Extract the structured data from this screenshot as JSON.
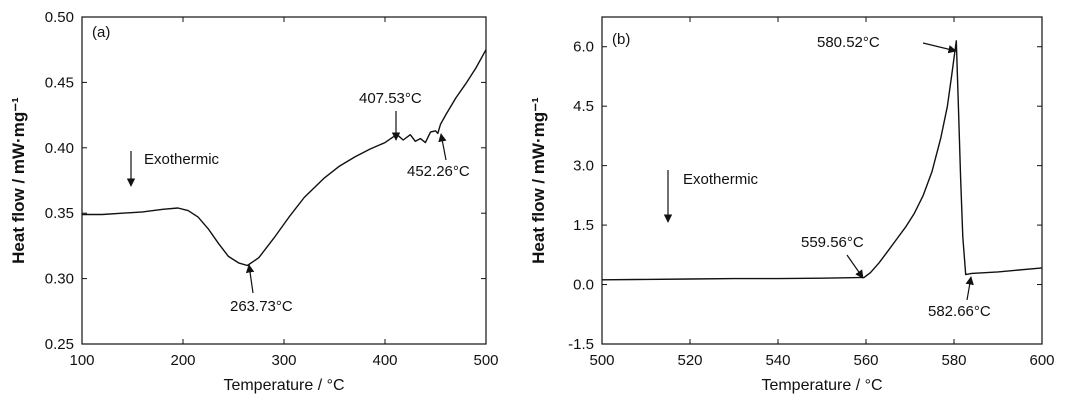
{
  "chart_data": [
    {
      "type": "line",
      "panel_label": "(a)",
      "xlabel": "Temperature / °C",
      "ylabel": "Heat flow / mW·mg⁻¹",
      "xlim": [
        100,
        500
      ],
      "ylim": [
        0.25,
        0.5
      ],
      "xticks": [
        "100",
        "200",
        "300",
        "400",
        "500"
      ],
      "yticks": [
        "0.25",
        "0.30",
        "0.35",
        "0.40",
        "0.45",
        "0.50"
      ],
      "grid": false,
      "series": [
        {
          "x": [
            100,
            120,
            140,
            160,
            180,
            195,
            205,
            215,
            225,
            235,
            245,
            255,
            263.73,
            275,
            290,
            305,
            320,
            340,
            355,
            370,
            385,
            400,
            407.53,
            412,
            418,
            425,
            430,
            435,
            440,
            445,
            450,
            452.26,
            455,
            460,
            470,
            480,
            490,
            500
          ],
          "y": [
            0.349,
            0.349,
            0.35,
            0.351,
            0.353,
            0.354,
            0.352,
            0.347,
            0.338,
            0.327,
            0.317,
            0.312,
            0.31,
            0.316,
            0.331,
            0.347,
            0.362,
            0.377,
            0.386,
            0.393,
            0.399,
            0.404,
            0.408,
            0.41,
            0.406,
            0.41,
            0.405,
            0.407,
            0.404,
            0.412,
            0.413,
            0.411,
            0.418,
            0.425,
            0.438,
            0.449,
            0.461,
            0.475
          ]
        }
      ],
      "annotations": [
        {
          "text": "Exothermic",
          "x": 148,
          "y": 0.365,
          "arrow": "down"
        },
        {
          "text": "263.73°C",
          "x": 263.73,
          "y": 0.31
        },
        {
          "text": "407.53°C",
          "x": 407.53,
          "y": 0.408
        },
        {
          "text": "452.26°C",
          "x": 452.26,
          "y": 0.411
        }
      ]
    },
    {
      "type": "line",
      "panel_label": "(b)",
      "xlabel": "Temperature / °C",
      "ylabel": "Heat flow / mW·mg⁻¹",
      "xlim": [
        500,
        600
      ],
      "ylim": [
        -1.5,
        6.75
      ],
      "xticks": [
        "500",
        "520",
        "540",
        "560",
        "580",
        "600"
      ],
      "yticks": [
        "-1.5",
        "0.0",
        "1.5",
        "3.0",
        "4.5",
        "6.0"
      ],
      "grid": false,
      "series": [
        {
          "x": [
            500,
            510,
            520,
            530,
            540,
            550,
            555,
            559.56,
            561,
            563,
            565,
            567,
            569,
            571,
            573,
            575,
            577,
            578.5,
            579.5,
            580.52,
            581,
            581.5,
            582,
            582.66,
            584,
            590,
            600
          ],
          "y": [
            0.12,
            0.13,
            0.14,
            0.15,
            0.15,
            0.16,
            0.17,
            0.18,
            0.3,
            0.55,
            0.85,
            1.15,
            1.45,
            1.8,
            2.25,
            2.85,
            3.7,
            4.5,
            5.3,
            6.15,
            4.5,
            2.7,
            1.2,
            0.25,
            0.28,
            0.32,
            0.42
          ]
        }
      ],
      "annotations": [
        {
          "text": "Exothermic",
          "x": 514.5,
          "y": 2.2,
          "arrow": "down"
        },
        {
          "text": "559.56°C",
          "x": 559.56,
          "y": 0.18
        },
        {
          "text": "580.52°C",
          "x": 580.52,
          "y": 6.15
        },
        {
          "text": "582.66°C",
          "x": 582.66,
          "y": 0.25
        }
      ]
    }
  ]
}
